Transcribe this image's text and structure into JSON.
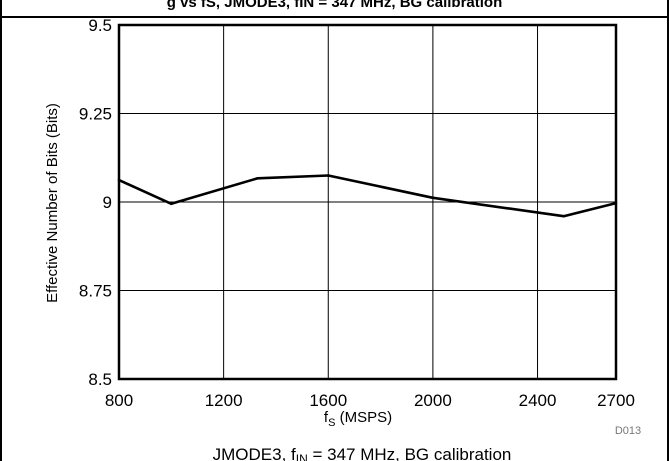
{
  "figure": {
    "title_fragment": "g vs fS, JMODE3, fIN = 347 MHz, BG calibration",
    "figure_id": "D013",
    "caption_main": "JMODE3, f",
    "caption_sub": "IN",
    "caption_rest": " = 347 MHz, BG calibration"
  },
  "chart_data": {
    "type": "line",
    "xlabel_main": "f",
    "xlabel_sub": "S",
    "xlabel_rest": " (MSPS)",
    "ylabel": "Effective Number of Bits (Bits)",
    "xlim": [
      800,
      2700
    ],
    "ylim": [
      8.5,
      9.5
    ],
    "x_ticks": [
      800,
      1200,
      1600,
      2000,
      2400,
      2700
    ],
    "y_ticks": [
      8.5,
      8.75,
      9,
      9.25,
      9.5
    ],
    "y_tick_labels": [
      "8.5",
      "8.75",
      "9",
      "9.25",
      "9.5"
    ],
    "grid": true,
    "x": [
      800,
      1000,
      1330,
      1600,
      2000,
      2500,
      2700
    ],
    "y": [
      9.062,
      8.995,
      9.067,
      9.075,
      9.012,
      8.96,
      8.997
    ],
    "line_color": "#000000"
  }
}
